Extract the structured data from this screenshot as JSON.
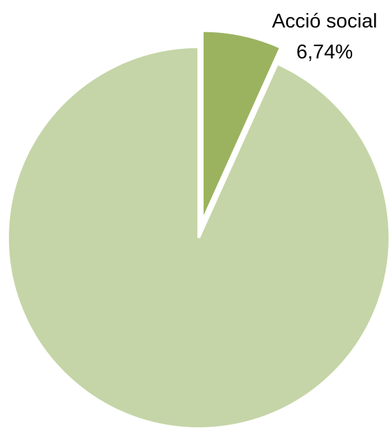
{
  "chart_data": {
    "type": "pie",
    "title": "",
    "slices": [
      {
        "label": "Acció social",
        "value_label": "6,74%",
        "value": 6.74,
        "color": "#9bb35f",
        "exploded": true,
        "show_label": true
      },
      {
        "label": "",
        "value_label": "",
        "value": 93.26,
        "color": "#c5d5a7",
        "exploded": false,
        "show_label": false
      }
    ],
    "start_angle_deg": 0,
    "direction": "clockwise",
    "legend": "none",
    "slice_border_color": "#ffffff"
  }
}
